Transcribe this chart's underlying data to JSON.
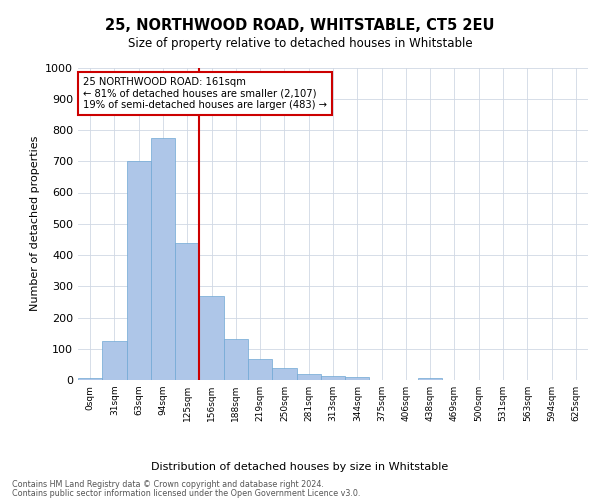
{
  "title": "25, NORTHWOOD ROAD, WHITSTABLE, CT5 2EU",
  "subtitle": "Size of property relative to detached houses in Whitstable",
  "xlabel": "Distribution of detached houses by size in Whitstable",
  "ylabel": "Number of detached properties",
  "footer_line1": "Contains HM Land Registry data © Crown copyright and database right 2024.",
  "footer_line2": "Contains public sector information licensed under the Open Government Licence v3.0.",
  "categories": [
    "0sqm",
    "31sqm",
    "63sqm",
    "94sqm",
    "125sqm",
    "156sqm",
    "188sqm",
    "219sqm",
    "250sqm",
    "281sqm",
    "313sqm",
    "344sqm",
    "375sqm",
    "406sqm",
    "438sqm",
    "469sqm",
    "500sqm",
    "531sqm",
    "563sqm",
    "594sqm",
    "625sqm"
  ],
  "bar_values": [
    5,
    125,
    700,
    775,
    440,
    270,
    130,
    68,
    37,
    20,
    12,
    10,
    0,
    0,
    5,
    0,
    0,
    0,
    0,
    0,
    0
  ],
  "bar_color": "#aec6e8",
  "bar_edge_color": "#6fa8d4",
  "vline_x_index": 5,
  "vline_color": "#cc0000",
  "annotation_text": "25 NORTHWOOD ROAD: 161sqm\n← 81% of detached houses are smaller (2,107)\n19% of semi-detached houses are larger (483) →",
  "annotation_box_color": "#ffffff",
  "annotation_box_edge": "#cc0000",
  "ylim": [
    0,
    1000
  ],
  "yticks": [
    0,
    100,
    200,
    300,
    400,
    500,
    600,
    700,
    800,
    900,
    1000
  ],
  "grid_color": "#d0d8e4",
  "background_color": "#ffffff",
  "fig_width": 6.0,
  "fig_height": 5.0,
  "dpi": 100
}
